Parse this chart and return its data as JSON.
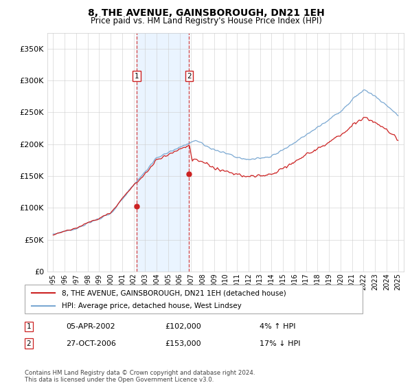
{
  "title": "8, THE AVENUE, GAINSBOROUGH, DN21 1EH",
  "subtitle": "Price paid vs. HM Land Registry's House Price Index (HPI)",
  "legend_line1": "8, THE AVENUE, GAINSBOROUGH, DN21 1EH (detached house)",
  "legend_line2": "HPI: Average price, detached house, West Lindsey",
  "annotation1_label": "1",
  "annotation1_date": "05-APR-2002",
  "annotation1_price": "£102,000",
  "annotation1_hpi": "4% ↑ HPI",
  "annotation2_label": "2",
  "annotation2_date": "27-OCT-2006",
  "annotation2_price": "£153,000",
  "annotation2_hpi": "17% ↓ HPI",
  "footer": "Contains HM Land Registry data © Crown copyright and database right 2024.\nThis data is licensed under the Open Government Licence v3.0.",
  "sale1_x": 2002.27,
  "sale1_y": 102000,
  "sale2_x": 2006.83,
  "sale2_y": 153000,
  "hpi_color": "#7aa8d2",
  "price_color": "#cc2222",
  "background_color": "#ffffff",
  "grid_color": "#cccccc",
  "shade_color": "#ddeeff",
  "ylim": [
    0,
    375000
  ],
  "xlim": [
    1994.5,
    2025.5
  ],
  "yticks": [
    0,
    50000,
    100000,
    150000,
    200000,
    250000,
    300000,
    350000
  ],
  "xticks": [
    1995,
    1996,
    1997,
    1998,
    1999,
    2000,
    2001,
    2002,
    2003,
    2004,
    2005,
    2006,
    2007,
    2008,
    2009,
    2010,
    2011,
    2012,
    2013,
    2014,
    2015,
    2016,
    2017,
    2018,
    2019,
    2020,
    2021,
    2022,
    2023,
    2024,
    2025
  ]
}
